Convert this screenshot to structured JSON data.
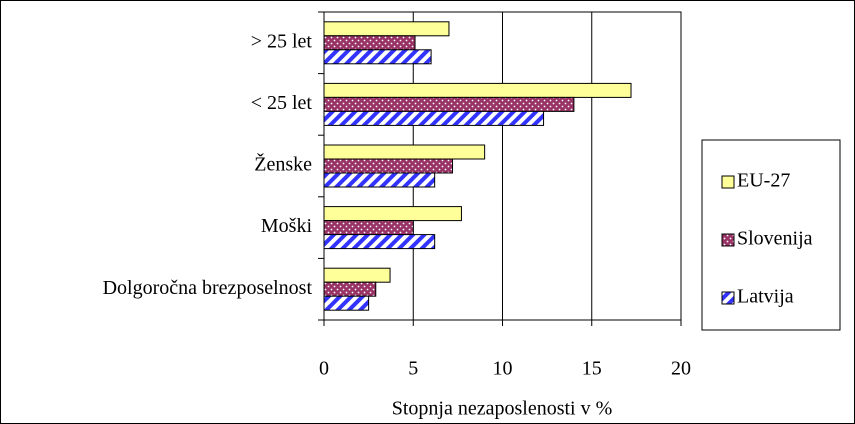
{
  "chart_data": {
    "type": "bar",
    "orientation": "horizontal",
    "categories": [
      "> 25 let",
      "< 25 let",
      "Ženske",
      "Moški",
      "Dolgoročna brezposelnost"
    ],
    "series": [
      {
        "name": "EU-27",
        "color": "#ffff99",
        "values": [
          7.0,
          17.2,
          9.0,
          7.7,
          3.7
        ]
      },
      {
        "name": "Slovenija",
        "color": "#993366",
        "values": [
          5.1,
          14.0,
          7.2,
          5.0,
          2.9
        ]
      },
      {
        "name": "Latvija",
        "color": "#3333ff",
        "values": [
          6.0,
          12.3,
          6.2,
          6.2,
          2.5
        ]
      }
    ],
    "xlabel": "Stopnja nezaposlenosti v %",
    "xlim": [
      0,
      20
    ],
    "xticks": [
      0,
      5,
      10,
      15,
      20
    ],
    "grid": true,
    "legend": "right"
  }
}
